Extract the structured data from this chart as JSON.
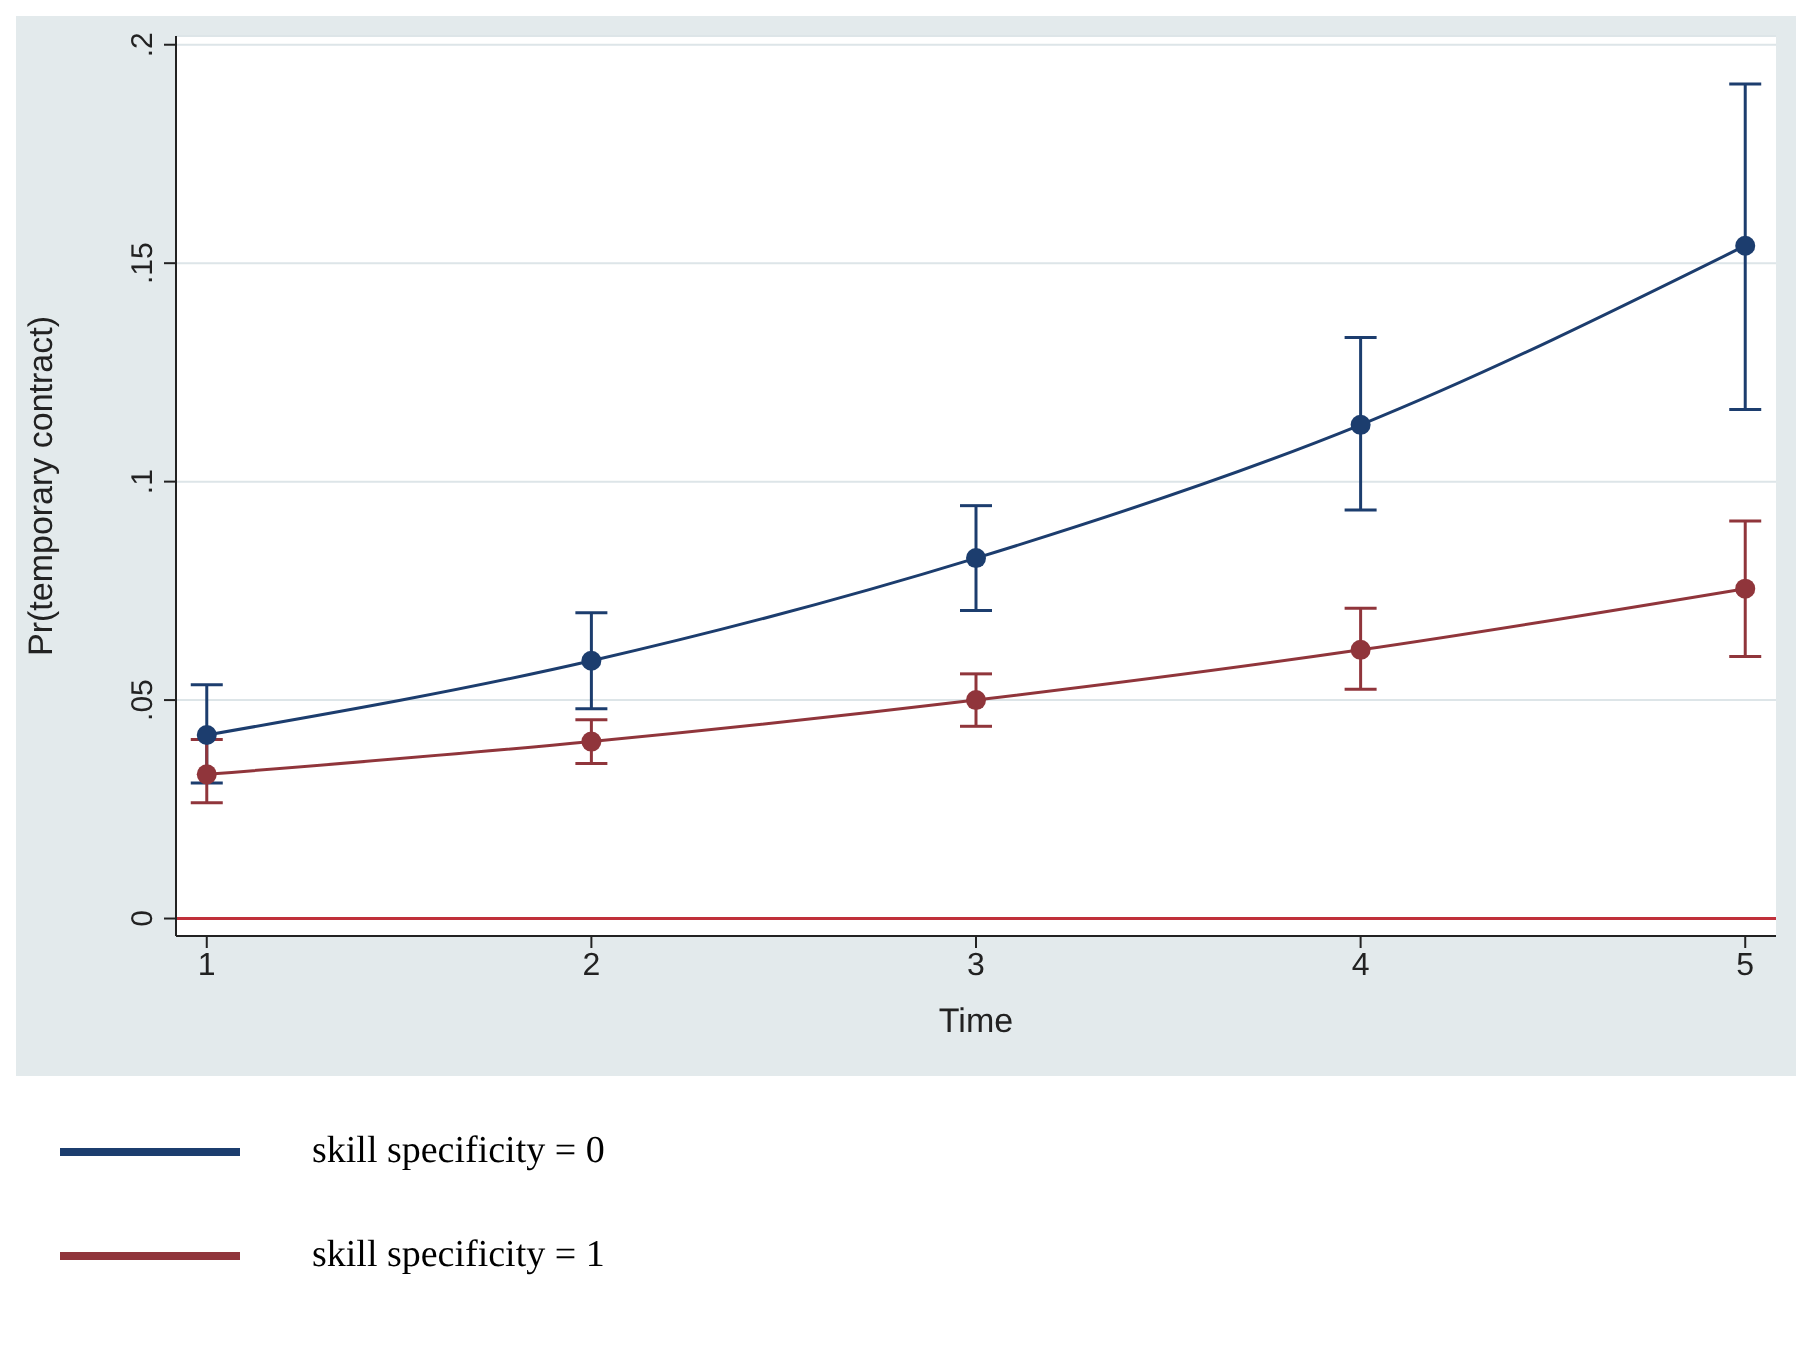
{
  "chart_data": {
    "type": "line",
    "xlabel": "Time",
    "ylabel": "Pr(temporary contract)",
    "x": [
      1,
      2,
      3,
      4,
      5
    ],
    "series": [
      {
        "name": "skill specificity = 0",
        "color": "#1c3d6e",
        "values": [
          0.042,
          0.059,
          0.0825,
          0.113,
          0.154
        ],
        "errors": [
          [
            0.031,
            0.0535
          ],
          [
            0.048,
            0.07
          ],
          [
            0.0705,
            0.0945
          ],
          [
            0.0935,
            0.133
          ],
          [
            0.1165,
            0.191
          ]
        ]
      },
      {
        "name": "skill specificity = 1",
        "color": "#90353b",
        "values": [
          0.033,
          0.0405,
          0.05,
          0.0615,
          0.0755
        ],
        "errors": [
          [
            0.0265,
            0.041
          ],
          [
            0.0355,
            0.0455
          ],
          [
            0.044,
            0.056
          ],
          [
            0.0525,
            0.071
          ],
          [
            0.06,
            0.091
          ]
        ]
      }
    ],
    "xlim": [
      0.92,
      5.08
    ],
    "xticks": [
      1,
      2,
      3,
      4,
      5
    ],
    "ylim": [
      -0.004,
      0.202
    ],
    "yticks": [
      {
        "value": 0,
        "label": "0"
      },
      {
        "value": 0.05,
        "label": ".05"
      },
      {
        "value": 0.1,
        "label": ".1"
      },
      {
        "value": 0.15,
        "label": ".15"
      },
      {
        "value": 0.2,
        "label": ".2"
      }
    ],
    "ref_lines": [
      {
        "axis": "y",
        "value": 0,
        "color": "#c0303a"
      }
    ],
    "grid": "y",
    "legend": "bottom",
    "marker": "circle",
    "line_style": "solid"
  }
}
